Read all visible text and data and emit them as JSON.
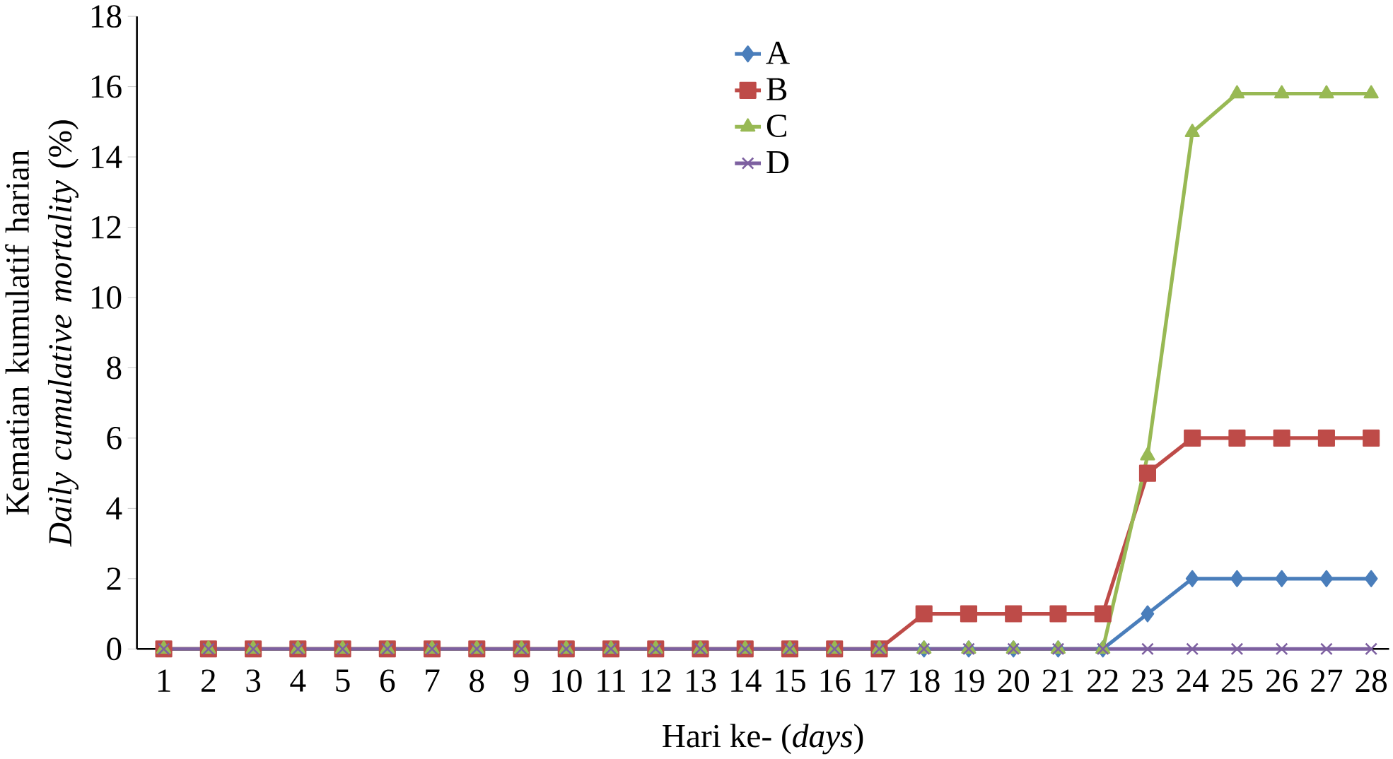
{
  "chart_data": {
    "type": "line",
    "xlabel": "Hari ke- (*days*)",
    "ylabel": "Kematian kumulatif harian\n*Daily cumulative mortality* (%)",
    "categories": [
      "1",
      "2",
      "3",
      "4",
      "5",
      "6",
      "7",
      "8",
      "9",
      "10",
      "11",
      "12",
      "13",
      "14",
      "15",
      "16",
      "17",
      "18",
      "19",
      "20",
      "21",
      "22",
      "23",
      "24",
      "25",
      "26",
      "27",
      "28"
    ],
    "ylim": [
      0,
      18
    ],
    "yticks": [
      0,
      2,
      4,
      6,
      8,
      10,
      12,
      14,
      16,
      18
    ],
    "grid": false,
    "legend": "top",
    "line_style": "solid",
    "series": [
      {
        "name": "A",
        "color": "#4a7ebb",
        "marker": "diamond",
        "values": [
          null,
          null,
          null,
          null,
          null,
          null,
          null,
          null,
          null,
          null,
          null,
          null,
          null,
          null,
          null,
          null,
          null,
          0,
          0,
          0,
          0,
          0,
          1,
          2,
          2,
          2,
          2,
          2
        ]
      },
      {
        "name": "B",
        "color": "#be4b48",
        "marker": "square",
        "values": [
          0,
          0,
          0,
          0,
          0,
          0,
          0,
          0,
          0,
          0,
          0,
          0,
          0,
          0,
          0,
          0,
          0,
          1,
          1,
          1,
          1,
          1,
          5,
          6,
          6,
          6,
          6,
          6
        ]
      },
      {
        "name": "C",
        "color": "#98b954",
        "marker": "triangle",
        "values": [
          0,
          0,
          0,
          0,
          0,
          0,
          0,
          0,
          0,
          0,
          0,
          0,
          0,
          0,
          0,
          0,
          0,
          0,
          0,
          0,
          0,
          0,
          5.5,
          14.7,
          15.8,
          15.8,
          15.8,
          15.8
        ]
      },
      {
        "name": "D",
        "color": "#7d60a0",
        "marker": "cross",
        "values": [
          0,
          0,
          0,
          0,
          0,
          0,
          0,
          0,
          0,
          0,
          0,
          0,
          0,
          0,
          0,
          0,
          0,
          0,
          0,
          0,
          0,
          0,
          0,
          0,
          0,
          0,
          0,
          0
        ]
      }
    ]
  }
}
